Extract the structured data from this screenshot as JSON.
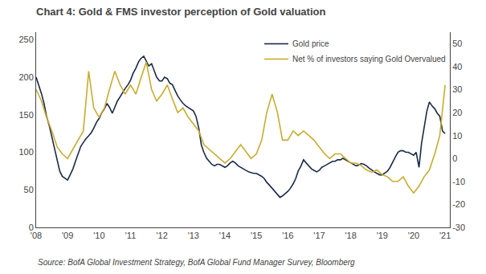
{
  "chart_data": {
    "type": "line",
    "title": "Chart 4: Gold & FMS investor perception of Gold valuation",
    "annotations": [
      "Source: BofA Global Investment Strategy, BofA Global Fund Manager Survey, Bloomberg"
    ],
    "xlim": [
      2008,
      2021.15
    ],
    "xticks": [
      {
        "value": 2008,
        "label": "'08"
      },
      {
        "value": 2009,
        "label": "'09"
      },
      {
        "value": 2010,
        "label": "'10"
      },
      {
        "value": 2011,
        "label": "'11"
      },
      {
        "value": 2012,
        "label": "'12"
      },
      {
        "value": 2013,
        "label": "'13"
      },
      {
        "value": 2014,
        "label": "'14"
      },
      {
        "value": 2015,
        "label": "'15"
      },
      {
        "value": 2016,
        "label": "'16"
      },
      {
        "value": 2017,
        "label": "'17"
      },
      {
        "value": 2018,
        "label": "'18"
      },
      {
        "value": 2019,
        "label": "'19"
      },
      {
        "value": 2020,
        "label": "'20"
      },
      {
        "value": 2021,
        "label": "'21"
      }
    ],
    "ylim": [
      0,
      260
    ],
    "yticks": [
      0,
      50,
      100,
      150,
      200,
      250
    ],
    "y2lim": [
      -30,
      55
    ],
    "y2ticks": [
      -30,
      -20,
      -10,
      0,
      10,
      20,
      30,
      40,
      50
    ],
    "grid": false,
    "legend": "upper right",
    "series": [
      {
        "name": "Gold price",
        "color": "#1b2a4a",
        "x": [
          2008.0,
          2008.08,
          2008.17,
          2008.25,
          2008.33,
          2008.42,
          2008.5,
          2008.58,
          2008.67,
          2008.75,
          2008.83,
          2008.92,
          2009.0,
          2009.08,
          2009.17,
          2009.25,
          2009.33,
          2009.42,
          2009.5,
          2009.58,
          2009.67,
          2009.75,
          2009.83,
          2009.92,
          2010.0,
          2010.08,
          2010.17,
          2010.25,
          2010.33,
          2010.42,
          2010.5,
          2010.58,
          2010.67,
          2010.75,
          2010.83,
          2010.92,
          2011.0,
          2011.08,
          2011.17,
          2011.25,
          2011.33,
          2011.42,
          2011.5,
          2011.58,
          2011.67,
          2011.75,
          2011.83,
          2011.92,
          2012.0,
          2012.08,
          2012.17,
          2012.25,
          2012.33,
          2012.42,
          2012.5,
          2012.58,
          2012.67,
          2012.75,
          2012.83,
          2012.92,
          2013.0,
          2013.08,
          2013.17,
          2013.25,
          2013.33,
          2013.42,
          2013.5,
          2013.58,
          2013.67,
          2013.75,
          2013.83,
          2013.92,
          2014.0,
          2014.08,
          2014.17,
          2014.25,
          2014.33,
          2014.42,
          2014.5,
          2014.58,
          2014.67,
          2014.75,
          2014.83,
          2014.92,
          2015.0,
          2015.08,
          2015.17,
          2015.25,
          2015.33,
          2015.42,
          2015.5,
          2015.58,
          2015.67,
          2015.75,
          2015.83,
          2015.92,
          2016.0,
          2016.08,
          2016.17,
          2016.25,
          2016.33,
          2016.42,
          2016.5,
          2016.58,
          2016.67,
          2016.75,
          2016.83,
          2016.92,
          2017.0,
          2017.08,
          2017.17,
          2017.25,
          2017.33,
          2017.42,
          2017.5,
          2017.58,
          2017.67,
          2017.75,
          2017.83,
          2017.92,
          2018.0,
          2018.08,
          2018.17,
          2018.25,
          2018.33,
          2018.42,
          2018.5,
          2018.58,
          2018.67,
          2018.75,
          2018.83,
          2018.92,
          2019.0,
          2019.08,
          2019.17,
          2019.25,
          2019.33,
          2019.42,
          2019.5,
          2019.58,
          2019.67,
          2019.75,
          2019.83,
          2019.92,
          2020.0,
          2020.08,
          2020.17,
          2020.25,
          2020.33,
          2020.42,
          2020.5,
          2020.58,
          2020.67,
          2020.75,
          2020.83,
          2020.92,
          2021.0
        ],
        "values": [
          200,
          190,
          178,
          165,
          148,
          135,
          120,
          105,
          88,
          75,
          68,
          65,
          63,
          70,
          78,
          88,
          98,
          108,
          113,
          118,
          122,
          126,
          132,
          140,
          145,
          152,
          158,
          165,
          160,
          152,
          160,
          168,
          174,
          180,
          185,
          190,
          196,
          205,
          212,
          220,
          225,
          228,
          222,
          215,
          218,
          210,
          200,
          195,
          195,
          200,
          198,
          192,
          190,
          182,
          175,
          170,
          165,
          162,
          160,
          157,
          155,
          148,
          132,
          110,
          100,
          92,
          88,
          84,
          82,
          84,
          84,
          82,
          80,
          82,
          86,
          88,
          86,
          82,
          80,
          78,
          76,
          74,
          73,
          72,
          72,
          70,
          68,
          65,
          60,
          56,
          52,
          48,
          43,
          40,
          42,
          45,
          48,
          52,
          58,
          65,
          75,
          82,
          90,
          86,
          82,
          78,
          76,
          74,
          76,
          80,
          82,
          84,
          86,
          88,
          88,
          90,
          90,
          92,
          90,
          88,
          86,
          84,
          82,
          83,
          85,
          84,
          82,
          79,
          76,
          74,
          72,
          70,
          70,
          72,
          75,
          80,
          87,
          94,
          100,
          102,
          102,
          100,
          100,
          98,
          96,
          100,
          80,
          112,
          132,
          155,
          167,
          162,
          158,
          152,
          148,
          128,
          125
        ]
      },
      {
        "name": "Net % of investors saying Gold Overvalued",
        "color": "#c9ac2c",
        "axis": "y2",
        "x": [
          2008.0,
          2008.17,
          2008.33,
          2008.5,
          2008.67,
          2008.83,
          2009.0,
          2009.17,
          2009.33,
          2009.5,
          2009.67,
          2009.83,
          2010.0,
          2010.17,
          2010.33,
          2010.5,
          2010.67,
          2010.83,
          2011.0,
          2011.17,
          2011.33,
          2011.5,
          2011.67,
          2011.83,
          2012.0,
          2012.17,
          2012.33,
          2012.5,
          2012.67,
          2012.83,
          2013.0,
          2013.17,
          2013.33,
          2013.5,
          2013.67,
          2013.83,
          2014.0,
          2014.17,
          2014.33,
          2014.5,
          2014.67,
          2014.83,
          2015.0,
          2015.17,
          2015.33,
          2015.5,
          2015.67,
          2015.83,
          2016.0,
          2016.17,
          2016.33,
          2016.5,
          2016.67,
          2016.83,
          2017.0,
          2017.17,
          2017.33,
          2017.5,
          2017.67,
          2017.83,
          2018.0,
          2018.17,
          2018.33,
          2018.5,
          2018.67,
          2018.83,
          2019.0,
          2019.17,
          2019.33,
          2019.5,
          2019.67,
          2019.83,
          2020.0,
          2020.17,
          2020.33,
          2020.5,
          2020.67,
          2020.83,
          2021.0
        ],
        "values": [
          30,
          25,
          18,
          12,
          5,
          2,
          0,
          4,
          8,
          12,
          38,
          22,
          18,
          22,
          30,
          38,
          32,
          28,
          32,
          28,
          35,
          42,
          30,
          25,
          28,
          32,
          26,
          20,
          22,
          18,
          15,
          12,
          6,
          4,
          2,
          0,
          -2,
          0,
          3,
          6,
          3,
          0,
          2,
          8,
          20,
          28,
          20,
          8,
          8,
          12,
          10,
          12,
          10,
          8,
          5,
          2,
          0,
          2,
          2,
          0,
          -2,
          -2,
          -3,
          -5,
          -6,
          -5,
          -7,
          -8,
          -10,
          -10,
          -8,
          -12,
          -15,
          -12,
          -8,
          -5,
          2,
          10,
          32
        ]
      }
    ]
  }
}
